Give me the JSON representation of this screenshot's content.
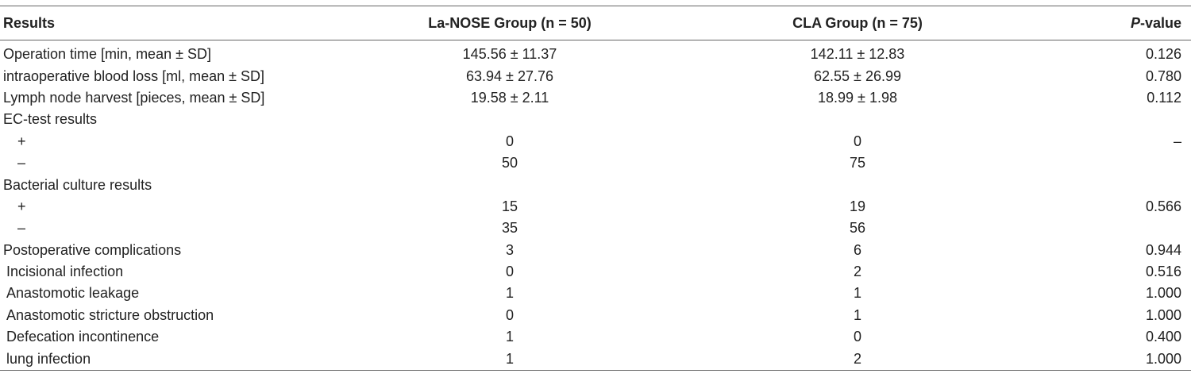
{
  "table": {
    "headers": {
      "results": "Results",
      "group1": "La-NOSE Group (n = 50)",
      "group2": "CLA Group (n = 75)",
      "p_italic": "P",
      "p_rest": "-value"
    },
    "rows": [
      {
        "label": "Operation time [min, mean ± SD]",
        "g1": "145.56 ± 11.37",
        "g2": "142.11 ± 12.83",
        "p": "0.126"
      },
      {
        "label": "intraoperative blood loss [ml, mean ± SD]",
        "g1": "63.94 ± 27.76",
        "g2": "62.55 ± 26.99",
        "p": "0.780"
      },
      {
        "label": "Lymph node harvest [pieces, mean ± SD]",
        "g1": "19.58 ± 2.11",
        "g2": "18.99 ± 1.98",
        "p": "0.112"
      },
      {
        "label": "EC-test results",
        "g1": "",
        "g2": "",
        "p": ""
      },
      {
        "label": "+",
        "g1": "0",
        "g2": "0",
        "p": "–"
      },
      {
        "label": "–",
        "g1": "50",
        "g2": "75",
        "p": ""
      },
      {
        "label": "Bacterial culture results",
        "g1": "",
        "g2": "",
        "p": ""
      },
      {
        "label": "+",
        "g1": "15",
        "g2": "19",
        "p": "0.566"
      },
      {
        "label": "–",
        "g1": "35",
        "g2": "56",
        "p": ""
      },
      {
        "label": "Postoperative complications",
        "g1": "3",
        "g2": "6",
        "p": "0.944"
      },
      {
        "label": "Incisional infection",
        "g1": "0",
        "g2": "2",
        "p": "0.516"
      },
      {
        "label": "Anastomotic leakage",
        "g1": "1",
        "g2": "1",
        "p": "1.000"
      },
      {
        "label": "Anastomotic stricture obstruction",
        "g1": "0",
        "g2": "1",
        "p": "1.000"
      },
      {
        "label": "Defecation incontinence",
        "g1": "1",
        "g2": "0",
        "p": "0.400"
      },
      {
        "label": "lung infection",
        "g1": "1",
        "g2": "2",
        "p": "1.000"
      }
    ]
  }
}
